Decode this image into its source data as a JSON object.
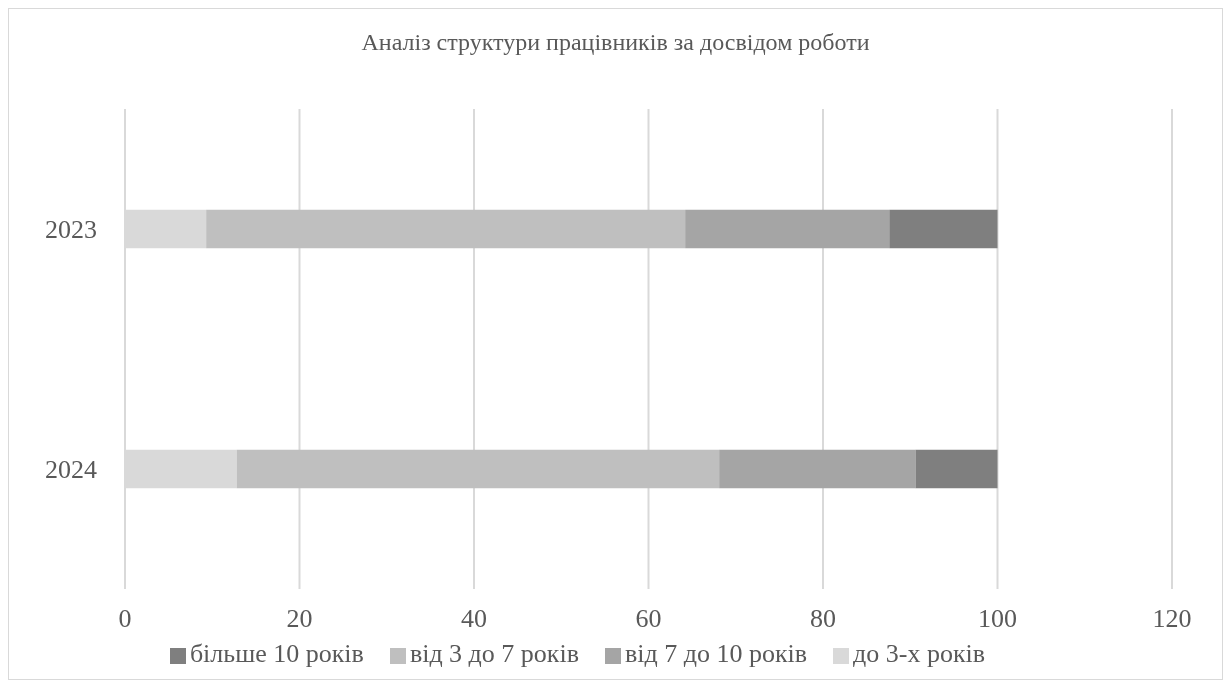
{
  "chart_data": {
    "type": "bar",
    "orientation": "horizontal",
    "stacked": true,
    "title": "Аналіз структури працівників за досвідом роботи",
    "categories": [
      "2023",
      "2024"
    ],
    "series": [
      {
        "name": "до 3-х років",
        "color": "#d9d9d9",
        "values": [
          9.3,
          12.8
        ]
      },
      {
        "name": "від 3 до 7 років",
        "color": "#bfbfbf",
        "values": [
          54.9,
          55.3
        ]
      },
      {
        "name": "від 7 до 10 років",
        "color": "#a5a5a5",
        "values": [
          23.4,
          22.5
        ]
      },
      {
        "name": "більше 10 років",
        "color": "#7f7f7f",
        "values": [
          12.4,
          9.4
        ]
      }
    ],
    "xlim": [
      0,
      120
    ],
    "xticks": [
      0,
      20,
      40,
      60,
      80,
      100,
      120
    ],
    "grid": "x",
    "legend": "bottom"
  }
}
